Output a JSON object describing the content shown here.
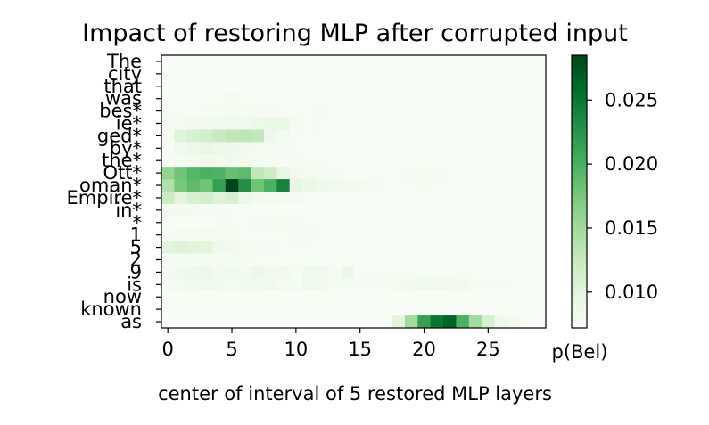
{
  "chart_data": {
    "type": "heatmap",
    "title": "Impact of restoring MLP after corrupted input",
    "xlabel": "center of interval of 5 restored MLP layers",
    "colorbar_label": "p(Bel)",
    "colormap": "Greens",
    "colorbar_range": [
      0.0072,
      0.0285
    ],
    "colorbar_ticks": [
      "0.010",
      "0.015",
      "0.020",
      "0.025"
    ],
    "colorbar_tick_values": [
      0.01,
      0.015,
      0.02,
      0.025
    ],
    "x_ticks": [
      "0",
      "5",
      "10",
      "15",
      "20",
      "25"
    ],
    "x_tick_values": [
      0,
      5,
      10,
      15,
      20,
      25
    ],
    "x_range": [
      0,
      30
    ],
    "y_labels": [
      "The",
      "city",
      "that",
      "was",
      "bes*",
      "ie*",
      "ged*",
      "by*",
      "the*",
      "Ott*",
      "oman*",
      "Empire*",
      "in*",
      "*",
      "1",
      "5",
      "2",
      "9",
      "is",
      "now",
      "known",
      "as"
    ],
    "values": [
      [
        0.0072,
        0.0072,
        0.0072,
        0.0072,
        0.0072,
        0.0072,
        0.0072,
        0.0072,
        0.0072,
        0.0072,
        0.0072,
        0.0072,
        0.0072,
        0.0072,
        0.0072,
        0.0072,
        0.0072,
        0.0072,
        0.0072,
        0.0072,
        0.0072,
        0.0072,
        0.0072,
        0.0072,
        0.0072,
        0.0072,
        0.0072,
        0.0072,
        0.0072,
        0.0072
      ],
      [
        0.0072,
        0.0072,
        0.0072,
        0.0072,
        0.0072,
        0.0072,
        0.0072,
        0.0072,
        0.0072,
        0.0072,
        0.0072,
        0.0072,
        0.0072,
        0.0072,
        0.0072,
        0.0072,
        0.0072,
        0.0072,
        0.0072,
        0.0072,
        0.0072,
        0.0072,
        0.0072,
        0.0072,
        0.0072,
        0.0072,
        0.0072,
        0.0072,
        0.0072,
        0.0072
      ],
      [
        0.0072,
        0.0072,
        0.0072,
        0.0072,
        0.0072,
        0.0072,
        0.0072,
        0.0072,
        0.0072,
        0.0072,
        0.0072,
        0.0072,
        0.0072,
        0.0072,
        0.0072,
        0.0072,
        0.0072,
        0.0072,
        0.0072,
        0.0072,
        0.0072,
        0.0072,
        0.0072,
        0.0072,
        0.0072,
        0.0072,
        0.0072,
        0.0072,
        0.0072,
        0.0072
      ],
      [
        0.0072,
        0.0072,
        0.0072,
        0.0072,
        0.0074,
        0.0075,
        0.0074,
        0.0073,
        0.0072,
        0.0072,
        0.0072,
        0.0072,
        0.0072,
        0.0072,
        0.0072,
        0.0072,
        0.0072,
        0.0072,
        0.0072,
        0.0072,
        0.0072,
        0.0072,
        0.0072,
        0.0072,
        0.0072,
        0.0072,
        0.0072,
        0.0072,
        0.0072,
        0.0072
      ],
      [
        0.0073,
        0.0073,
        0.0074,
        0.0075,
        0.0077,
        0.0078,
        0.0077,
        0.0076,
        0.0075,
        0.0074,
        0.0073,
        0.0073,
        0.0075,
        0.0073,
        0.0072,
        0.0072,
        0.0072,
        0.0072,
        0.0072,
        0.0072,
        0.0072,
        0.0072,
        0.0072,
        0.0072,
        0.0072,
        0.0072,
        0.0072,
        0.0072,
        0.0072,
        0.0072
      ],
      [
        0.0076,
        0.0078,
        0.008,
        0.0081,
        0.0082,
        0.0083,
        0.0084,
        0.0088,
        0.0092,
        0.009,
        0.0076,
        0.0074,
        0.0074,
        0.0073,
        0.0073,
        0.0072,
        0.0072,
        0.0072,
        0.0072,
        0.0072,
        0.0072,
        0.0072,
        0.0072,
        0.0072,
        0.0072,
        0.0072,
        0.0072,
        0.0072,
        0.0072,
        0.0072
      ],
      [
        0.0075,
        0.0105,
        0.011,
        0.0115,
        0.0122,
        0.013,
        0.0132,
        0.0128,
        0.0085,
        0.0078,
        0.0074,
        0.0073,
        0.0073,
        0.0072,
        0.0072,
        0.0072,
        0.0072,
        0.0072,
        0.0072,
        0.0072,
        0.0072,
        0.0072,
        0.0072,
        0.0072,
        0.0072,
        0.0072,
        0.0072,
        0.0072,
        0.0072,
        0.0072
      ],
      [
        0.0074,
        0.0082,
        0.0088,
        0.0092,
        0.0088,
        0.0085,
        0.008,
        0.0078,
        0.0076,
        0.0075,
        0.0074,
        0.0073,
        0.0073,
        0.0072,
        0.0072,
        0.0072,
        0.0072,
        0.0072,
        0.0072,
        0.0072,
        0.0072,
        0.0072,
        0.0072,
        0.0072,
        0.0072,
        0.0072,
        0.0072,
        0.0072,
        0.0072,
        0.0072
      ],
      [
        0.0074,
        0.0076,
        0.0078,
        0.0079,
        0.008,
        0.0082,
        0.008,
        0.0077,
        0.0076,
        0.0075,
        0.0074,
        0.0073,
        0.0073,
        0.0072,
        0.0072,
        0.0072,
        0.0072,
        0.0072,
        0.0072,
        0.0072,
        0.0072,
        0.0072,
        0.0072,
        0.0072,
        0.0072,
        0.0072,
        0.0072,
        0.0072,
        0.0072,
        0.0072
      ],
      [
        0.016,
        0.018,
        0.0195,
        0.02,
        0.0198,
        0.0185,
        0.019,
        0.013,
        0.012,
        0.0095,
        0.008,
        0.0078,
        0.0076,
        0.0075,
        0.0074,
        0.0074,
        0.0073,
        0.0074,
        0.0074,
        0.0075,
        0.0078,
        0.0076,
        0.0074,
        0.0073,
        0.0072,
        0.0072,
        0.0072,
        0.0072,
        0.0072,
        0.0072
      ],
      [
        0.014,
        0.0175,
        0.019,
        0.018,
        0.0215,
        0.0285,
        0.023,
        0.018,
        0.02,
        0.024,
        0.0095,
        0.009,
        0.0085,
        0.0082,
        0.008,
        0.0078,
        0.0075,
        0.0074,
        0.0074,
        0.0074,
        0.0075,
        0.0074,
        0.0073,
        0.0073,
        0.0072,
        0.0072,
        0.0072,
        0.0072,
        0.0072,
        0.0072
      ],
      [
        0.012,
        0.01,
        0.011,
        0.0115,
        0.0105,
        0.011,
        0.0088,
        0.008,
        0.0078,
        0.0076,
        0.0075,
        0.0074,
        0.0073,
        0.0073,
        0.0072,
        0.0072,
        0.0072,
        0.0072,
        0.0072,
        0.0072,
        0.0072,
        0.0072,
        0.0072,
        0.0072,
        0.0072,
        0.0072,
        0.0072,
        0.0072,
        0.0072,
        0.0072
      ],
      [
        0.0078,
        0.008,
        0.0078,
        0.0076,
        0.0075,
        0.0074,
        0.0073,
        0.0072,
        0.0072,
        0.0072,
        0.0072,
        0.0072,
        0.0072,
        0.0072,
        0.0072,
        0.0072,
        0.0072,
        0.0072,
        0.0072,
        0.0072,
        0.0072,
        0.0072,
        0.0072,
        0.0072,
        0.0072,
        0.0072,
        0.0072,
        0.0072,
        0.0072,
        0.0072
      ],
      [
        0.0072,
        0.0072,
        0.0072,
        0.0072,
        0.0073,
        0.0073,
        0.0074,
        0.0075,
        0.0076,
        0.0077,
        0.0075,
        0.0074,
        0.0073,
        0.0072,
        0.0072,
        0.0072,
        0.0072,
        0.0072,
        0.0072,
        0.0072,
        0.0072,
        0.0072,
        0.0072,
        0.0072,
        0.0072,
        0.0072,
        0.0072,
        0.0072,
        0.0072,
        0.0072
      ],
      [
        0.0074,
        0.0076,
        0.0077,
        0.0078,
        0.0076,
        0.0077,
        0.0074,
        0.0073,
        0.0073,
        0.0073,
        0.0075,
        0.0076,
        0.0074,
        0.0073,
        0.0073,
        0.0072,
        0.0072,
        0.0072,
        0.0072,
        0.0072,
        0.0072,
        0.0072,
        0.0072,
        0.0072,
        0.0072,
        0.0072,
        0.0072,
        0.0072,
        0.0072,
        0.0072
      ],
      [
        0.01,
        0.0105,
        0.0102,
        0.01,
        0.0085,
        0.008,
        0.0078,
        0.0076,
        0.0075,
        0.0074,
        0.0073,
        0.0073,
        0.0072,
        0.0072,
        0.0072,
        0.0072,
        0.0072,
        0.0072,
        0.0072,
        0.0072,
        0.0072,
        0.0072,
        0.0072,
        0.0072,
        0.0072,
        0.0072,
        0.0072,
        0.0072,
        0.0072,
        0.0072
      ],
      [
        0.0074,
        0.0076,
        0.0077,
        0.0078,
        0.0077,
        0.0076,
        0.0075,
        0.0074,
        0.0073,
        0.0073,
        0.0073,
        0.0072,
        0.0072,
        0.0072,
        0.0072,
        0.0072,
        0.0072,
        0.0072,
        0.0072,
        0.0072,
        0.0072,
        0.0072,
        0.0072,
        0.0072,
        0.0072,
        0.0072,
        0.0072,
        0.0072,
        0.0072,
        0.0072
      ],
      [
        0.0078,
        0.0082,
        0.0085,
        0.0088,
        0.008,
        0.0082,
        0.0078,
        0.0086,
        0.008,
        0.0083,
        0.0076,
        0.0082,
        0.0084,
        0.0076,
        0.0086,
        0.0074,
        0.0073,
        0.0073,
        0.0073,
        0.0073,
        0.0073,
        0.0073,
        0.0073,
        0.0073,
        0.0072,
        0.0072,
        0.0072,
        0.0072,
        0.0072,
        0.0072
      ],
      [
        0.0076,
        0.0078,
        0.008,
        0.0082,
        0.0079,
        0.0077,
        0.008,
        0.0081,
        0.0083,
        0.0078,
        0.0076,
        0.0082,
        0.008,
        0.0077,
        0.0076,
        0.0075,
        0.0076,
        0.0077,
        0.0078,
        0.008,
        0.0082,
        0.0083,
        0.0081,
        0.0079,
        0.0077,
        0.0076,
        0.0075,
        0.0074,
        0.0073,
        0.0072
      ],
      [
        0.0072,
        0.0072,
        0.0072,
        0.0072,
        0.0072,
        0.0072,
        0.0072,
        0.0072,
        0.0072,
        0.0072,
        0.0072,
        0.0072,
        0.0072,
        0.0072,
        0.0072,
        0.0072,
        0.0072,
        0.0072,
        0.0072,
        0.0072,
        0.0072,
        0.0072,
        0.0072,
        0.0072,
        0.0072,
        0.0072,
        0.0072,
        0.0072,
        0.0072,
        0.0072
      ],
      [
        0.0072,
        0.0072,
        0.0073,
        0.0073,
        0.0073,
        0.0073,
        0.0072,
        0.0072,
        0.0072,
        0.0072,
        0.0072,
        0.0072,
        0.0072,
        0.0072,
        0.0072,
        0.0072,
        0.0072,
        0.0072,
        0.0072,
        0.0072,
        0.0072,
        0.0072,
        0.0072,
        0.0072,
        0.0072,
        0.0072,
        0.0072,
        0.0072,
        0.0072,
        0.0072
      ],
      [
        0.0072,
        0.0072,
        0.0072,
        0.0072,
        0.0072,
        0.0072,
        0.0072,
        0.0072,
        0.0072,
        0.0072,
        0.0072,
        0.0072,
        0.0072,
        0.0072,
        0.0072,
        0.0072,
        0.0072,
        0.0072,
        0.01,
        0.015,
        0.0215,
        0.025,
        0.0265,
        0.02,
        0.015,
        0.011,
        0.0085,
        0.008,
        0.0072,
        0.0072
      ]
    ]
  }
}
